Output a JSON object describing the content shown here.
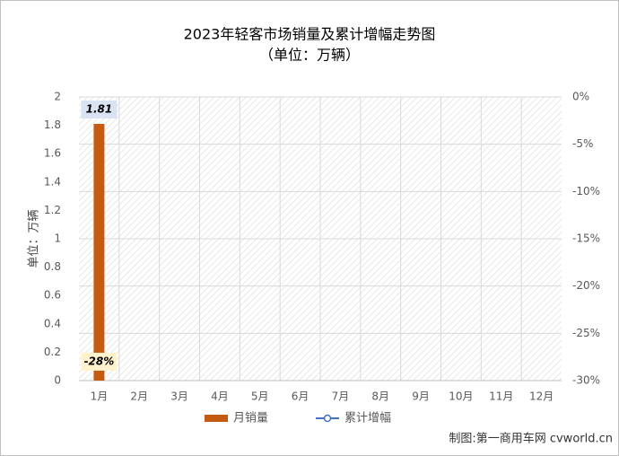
{
  "chart_data": {
    "type": "bar_line",
    "title": "2023年轻客市场销量及累计增幅走势图",
    "subtitle": "（单位：万辆）",
    "y_label": "单位：万辆",
    "source": "制图:第一商用车网 cvworld.cn",
    "categories": [
      "1月",
      "2月",
      "3月",
      "4月",
      "5月",
      "6月",
      "7月",
      "8月",
      "9月",
      "10月",
      "11月",
      "12月"
    ],
    "series": [
      {
        "name": "月销量",
        "type": "bar",
        "color": "#c55a11",
        "values": [
          1.81,
          null,
          null,
          null,
          null,
          null,
          null,
          null,
          null,
          null,
          null,
          null
        ]
      },
      {
        "name": "累计增幅",
        "type": "line",
        "axis": "y2",
        "color": "#4472c4",
        "values": [
          -28,
          null,
          null,
          null,
          null,
          null,
          null,
          null,
          null,
          null,
          null,
          null
        ],
        "value_labels": [
          "-28%",
          null,
          null,
          null,
          null,
          null,
          null,
          null,
          null,
          null,
          null,
          null
        ]
      }
    ],
    "ylim": [
      0,
      2
    ],
    "yticks": [
      0,
      0.2,
      0.4,
      0.6,
      0.8,
      1,
      1.2,
      1.4,
      1.6,
      1.8,
      2
    ],
    "y2lim": [
      -30,
      0
    ],
    "y2ticks": [
      {
        "value": 0,
        "label": "0%"
      },
      {
        "value": -5,
        "label": "-5%"
      },
      {
        "value": -10,
        "label": "-10%"
      },
      {
        "value": -15,
        "label": "-15%"
      },
      {
        "value": -20,
        "label": "-20%"
      },
      {
        "value": -25,
        "label": "-25%"
      },
      {
        "value": -30,
        "label": "-30%"
      }
    ],
    "grid": true,
    "legend": "bottom"
  }
}
